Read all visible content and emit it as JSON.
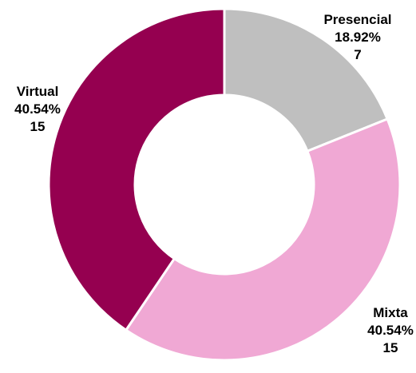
{
  "chart_data": {
    "type": "pie",
    "donut": true,
    "slices": [
      {
        "label": "Presencial",
        "percent_label": "18.92%",
        "count_label": "7",
        "value": 7,
        "color": "#bfbfbf"
      },
      {
        "label": "Mixta",
        "percent_label": "40.54%",
        "count_label": "15",
        "value": 15,
        "color": "#f0a8d4"
      },
      {
        "label": "Virtual",
        "percent_label": "40.54%",
        "count_label": "15",
        "value": 15,
        "color": "#950050"
      }
    ],
    "start_angle": "12 o'clock",
    "direction": "clockwise",
    "legend": "none (labels placed beside slices)"
  }
}
